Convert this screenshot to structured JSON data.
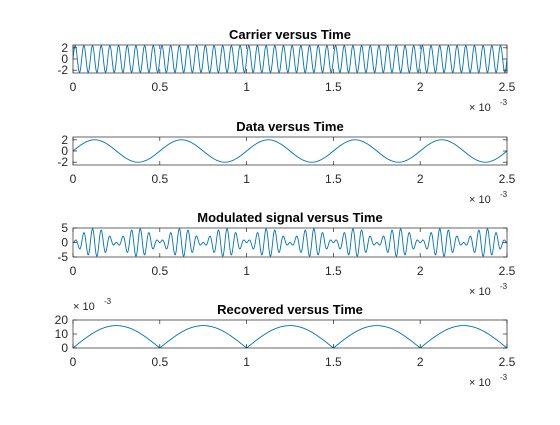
{
  "chart_data": [
    {
      "type": "line",
      "title": "Carrier versus Time",
      "xlabel": "",
      "ylabel": "",
      "xlim": [
        0,
        0.0025
      ],
      "ylim": [
        -2.5,
        2.5
      ],
      "xticks": [
        0,
        0.0005,
        0.001,
        0.0015,
        0.002,
        0.0025
      ],
      "xtick_labels": [
        "0",
        "0.5",
        "1",
        "1.5",
        "2",
        "2.5"
      ],
      "yticks": [
        -2,
        0,
        2
      ],
      "ytick_labels": [
        "-2",
        "0",
        "2"
      ],
      "x_exponent": {
        "base": "× 10",
        "power": "-3",
        "position": "bottom-right"
      },
      "grid": false,
      "legend": "none",
      "color": "#0072BD",
      "series": [
        {
          "signal": "sine",
          "amplitude": 2.4,
          "frequency_hz": 20000,
          "offset": 0,
          "abs": false,
          "t_start": 0,
          "t_end": 0.0025,
          "samples": 1200
        }
      ]
    },
    {
      "type": "line",
      "title": "Data versus Time",
      "xlabel": "",
      "ylabel": "",
      "xlim": [
        0,
        0.0025
      ],
      "ylim": [
        -2.5,
        2.5
      ],
      "xticks": [
        0,
        0.0005,
        0.001,
        0.0015,
        0.002,
        0.0025
      ],
      "xtick_labels": [
        "0",
        "0.5",
        "1",
        "1.5",
        "2",
        "2.5"
      ],
      "yticks": [
        -2,
        0,
        2
      ],
      "ytick_labels": [
        "-2",
        "0",
        "2"
      ],
      "x_exponent": {
        "base": "× 10",
        "power": "-3",
        "position": "bottom-right"
      },
      "grid": false,
      "legend": "none",
      "color": "#0072BD",
      "series": [
        {
          "signal": "sine",
          "amplitude": 2,
          "frequency_hz": 2000,
          "offset": 0,
          "abs": false,
          "t_start": 0,
          "t_end": 0.0025,
          "samples": 400
        }
      ]
    },
    {
      "type": "line",
      "title": "Modulated signal versus Time",
      "xlabel": "",
      "ylabel": "",
      "xlim": [
        0,
        0.0025
      ],
      "ylim": [
        -5,
        5
      ],
      "xticks": [
        0,
        0.0005,
        0.001,
        0.0015,
        0.002,
        0.0025
      ],
      "xtick_labels": [
        "0",
        "0.5",
        "1",
        "1.5",
        "2",
        "2.5"
      ],
      "yticks": [
        -5,
        0,
        5
      ],
      "ytick_labels": [
        "-5",
        "0",
        "5"
      ],
      "x_exponent": {
        "base": "× 10",
        "power": "-3",
        "position": "bottom-right"
      },
      "grid": false,
      "legend": "none",
      "color": "#0072BD",
      "series": [
        {
          "signal": "product",
          "amplitude": 2.4,
          "frequency_hz": 20000,
          "modulator_amplitude": 2,
          "modulator_frequency_hz": 2000,
          "t_start": 0,
          "t_end": 0.0025,
          "samples": 1400
        }
      ]
    },
    {
      "type": "line",
      "title": "Recovered versus Time",
      "xlabel": "",
      "ylabel": "",
      "xlim": [
        0,
        0.0025
      ],
      "ylim": [
        0,
        20
      ],
      "xticks": [
        0,
        0.0005,
        0.001,
        0.0015,
        0.002,
        0.0025
      ],
      "xtick_labels": [
        "0",
        "0.5",
        "1",
        "1.5",
        "2",
        "2.5"
      ],
      "yticks": [
        0,
        10,
        20
      ],
      "ytick_labels": [
        "0",
        "10",
        "20"
      ],
      "y_exponent": {
        "base": "× 10",
        "power": "-3",
        "position": "top-left"
      },
      "x_exponent": {
        "base": "× 10",
        "power": "-3",
        "position": "bottom-right"
      },
      "grid": false,
      "legend": "none",
      "color": "#0072BD",
      "series": [
        {
          "signal": "abs_sine",
          "amplitude": 16,
          "frequency_hz": 1000,
          "offset": 0,
          "abs": true,
          "t_start": 0,
          "t_end": 0.0025,
          "samples": 500
        }
      ]
    }
  ]
}
